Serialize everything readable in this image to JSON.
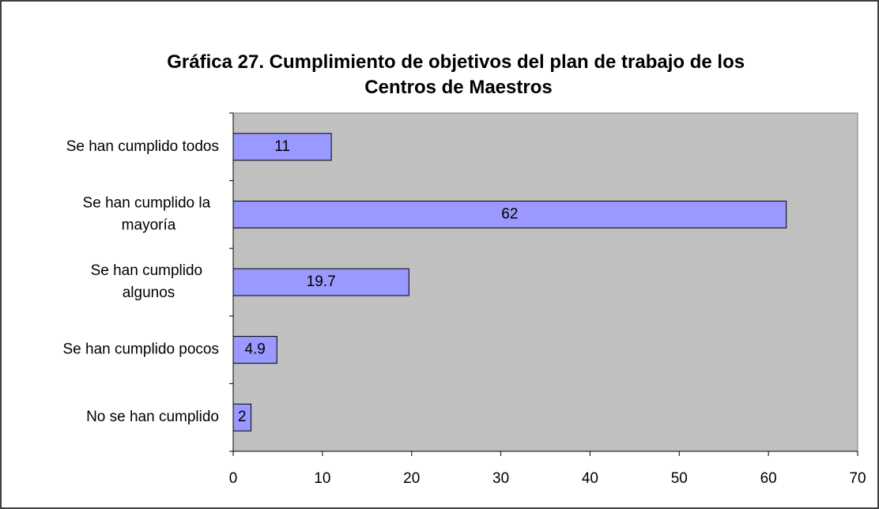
{
  "chart_data": {
    "type": "bar",
    "orientation": "horizontal",
    "title": "Gráfica 27. Cumplimiento de objetivos del plan de trabajo de los Centros de Maestros",
    "categories": [
      "Se han cumplido todos",
      "Se han cumplido la mayoría",
      "Se han cumplido algunos",
      "Se han cumplido pocos",
      "No se han cumplido"
    ],
    "values": [
      11,
      62,
      19.7,
      4.9,
      2
    ],
    "color": "#9999ff",
    "xlim": [
      0,
      70
    ],
    "xticks": [
      0,
      10,
      20,
      30,
      40,
      50,
      60,
      70
    ],
    "grid": false
  }
}
